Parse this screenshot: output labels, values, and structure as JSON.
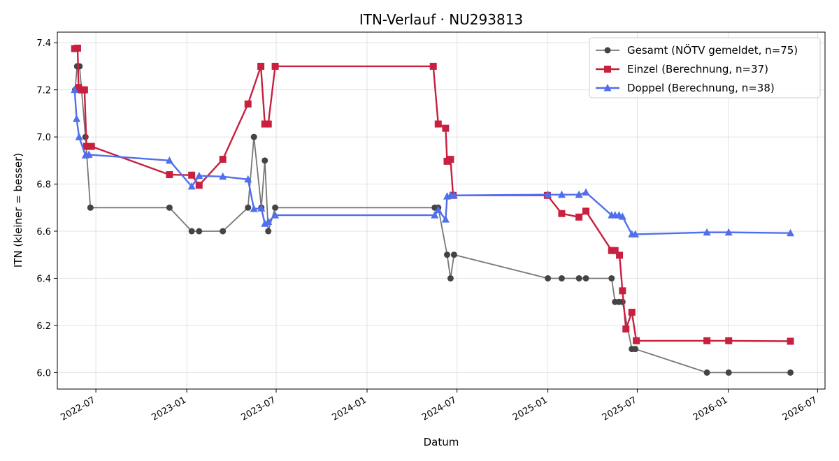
{
  "chart_data": {
    "type": "line",
    "title": "ITN-Verlauf · NU293813",
    "xlabel": "Datum",
    "ylabel": "ITN  (kleiner = besser)",
    "x_range": [
      "2022-04-14",
      "2026-07-16"
    ],
    "ylim": [
      5.93,
      7.445
    ],
    "grid": true,
    "legend_position": "top-right",
    "x_ticks": [
      {
        "date": "2022-07-01",
        "label": "2022-07"
      },
      {
        "date": "2023-01-01",
        "label": "2023-01"
      },
      {
        "date": "2023-07-01",
        "label": "2023-07"
      },
      {
        "date": "2024-01-01",
        "label": "2024-01"
      },
      {
        "date": "2024-07-01",
        "label": "2024-07"
      },
      {
        "date": "2025-01-01",
        "label": "2025-01"
      },
      {
        "date": "2025-07-01",
        "label": "2025-07"
      },
      {
        "date": "2026-01-01",
        "label": "2026-01"
      },
      {
        "date": "2026-07-01",
        "label": "2026-07"
      }
    ],
    "y_ticks": [
      {
        "value": 6.0,
        "label": "6.0"
      },
      {
        "value": 6.2,
        "label": "6.2"
      },
      {
        "value": 6.4,
        "label": "6.4"
      },
      {
        "value": 6.6,
        "label": "6.6"
      },
      {
        "value": 6.8,
        "label": "6.8"
      },
      {
        "value": 7.0,
        "label": "7.0"
      },
      {
        "value": 7.2,
        "label": "7.2"
      },
      {
        "value": 7.4,
        "label": "7.4"
      }
    ],
    "series": [
      {
        "name": "Gesamt (NÖTV gemeldet, n=75)",
        "color": "#444444",
        "marker": "circle",
        "points": [
          {
            "x": "2022-05-20",
            "y": 7.2
          },
          {
            "x": "2022-05-24",
            "y": 7.3
          },
          {
            "x": "2022-05-29",
            "y": 7.3
          },
          {
            "x": "2022-06-10",
            "y": 7.0
          },
          {
            "x": "2022-06-20",
            "y": 6.7
          },
          {
            "x": "2022-11-27",
            "y": 6.7
          },
          {
            "x": "2023-01-11",
            "y": 6.6
          },
          {
            "x": "2023-01-26",
            "y": 6.6
          },
          {
            "x": "2023-03-15",
            "y": 6.6
          },
          {
            "x": "2023-05-05",
            "y": 6.7
          },
          {
            "x": "2023-05-17",
            "y": 7.0
          },
          {
            "x": "2023-06-01",
            "y": 6.7
          },
          {
            "x": "2023-06-08",
            "y": 6.9
          },
          {
            "x": "2023-06-15",
            "y": 6.6
          },
          {
            "x": "2023-06-29",
            "y": 6.7
          },
          {
            "x": "2024-05-17",
            "y": 6.7
          },
          {
            "x": "2024-05-24",
            "y": 6.7
          },
          {
            "x": "2024-06-11",
            "y": 6.5
          },
          {
            "x": "2024-06-18",
            "y": 6.4
          },
          {
            "x": "2024-06-25",
            "y": 6.5
          },
          {
            "x": "2025-01-01",
            "y": 6.4
          },
          {
            "x": "2025-01-29",
            "y": 6.4
          },
          {
            "x": "2025-03-05",
            "y": 6.4
          },
          {
            "x": "2025-03-19",
            "y": 6.4
          },
          {
            "x": "2025-05-10",
            "y": 6.4
          },
          {
            "x": "2025-05-17",
            "y": 6.3
          },
          {
            "x": "2025-05-25",
            "y": 6.3
          },
          {
            "x": "2025-06-01",
            "y": 6.3
          },
          {
            "x": "2025-06-20",
            "y": 6.1
          },
          {
            "x": "2025-06-27",
            "y": 6.1
          },
          {
            "x": "2025-11-19",
            "y": 6.0
          },
          {
            "x": "2026-01-02",
            "y": 6.0
          },
          {
            "x": "2026-05-07",
            "y": 6.0
          }
        ]
      },
      {
        "name": "Einzel (Berechnung, n=37)",
        "color": "#c8203f",
        "marker": "square",
        "points": [
          {
            "x": "2022-05-19",
            "y": 7.375
          },
          {
            "x": "2022-05-25",
            "y": 7.377
          },
          {
            "x": "2022-05-27",
            "y": 7.21
          },
          {
            "x": "2022-06-02",
            "y": 7.2
          },
          {
            "x": "2022-06-08",
            "y": 7.2
          },
          {
            "x": "2022-06-12",
            "y": 6.96
          },
          {
            "x": "2022-06-22",
            "y": 6.96
          },
          {
            "x": "2022-11-27",
            "y": 6.84
          },
          {
            "x": "2023-01-11",
            "y": 6.838
          },
          {
            "x": "2023-01-26",
            "y": 6.795
          },
          {
            "x": "2023-03-15",
            "y": 6.905
          },
          {
            "x": "2023-05-05",
            "y": 7.14
          },
          {
            "x": "2023-05-31",
            "y": 7.3
          },
          {
            "x": "2023-06-08",
            "y": 7.055
          },
          {
            "x": "2023-06-15",
            "y": 7.055
          },
          {
            "x": "2023-06-29",
            "y": 7.3
          },
          {
            "x": "2024-05-14",
            "y": 7.3
          },
          {
            "x": "2024-05-24",
            "y": 7.055
          },
          {
            "x": "2024-06-08",
            "y": 7.037
          },
          {
            "x": "2024-06-11",
            "y": 6.897
          },
          {
            "x": "2024-06-18",
            "y": 6.905
          },
          {
            "x": "2024-06-23",
            "y": 6.752
          },
          {
            "x": "2024-12-31",
            "y": 6.752
          },
          {
            "x": "2025-01-29",
            "y": 6.675
          },
          {
            "x": "2025-03-05",
            "y": 6.66
          },
          {
            "x": "2025-03-19",
            "y": 6.685
          },
          {
            "x": "2025-05-10",
            "y": 6.518
          },
          {
            "x": "2025-05-17",
            "y": 6.518
          },
          {
            "x": "2025-05-26",
            "y": 6.498
          },
          {
            "x": "2025-06-01",
            "y": 6.347
          },
          {
            "x": "2025-06-08",
            "y": 6.185
          },
          {
            "x": "2025-06-20",
            "y": 6.256
          },
          {
            "x": "2025-06-29",
            "y": 6.135
          },
          {
            "x": "2025-11-19",
            "y": 6.135
          },
          {
            "x": "2026-01-02",
            "y": 6.135
          },
          {
            "x": "2026-05-07",
            "y": 6.133
          }
        ]
      },
      {
        "name": "Doppel (Berechnung, n=38)",
        "color": "#4f6fed",
        "marker": "triangle",
        "points": [
          {
            "x": "2022-05-19",
            "y": 7.2
          },
          {
            "x": "2022-05-23",
            "y": 7.077
          },
          {
            "x": "2022-05-28",
            "y": 7.0
          },
          {
            "x": "2022-06-10",
            "y": 6.922
          },
          {
            "x": "2022-06-17",
            "y": 6.925
          },
          {
            "x": "2022-11-27",
            "y": 6.9
          },
          {
            "x": "2023-01-11",
            "y": 6.79
          },
          {
            "x": "2023-01-26",
            "y": 6.835
          },
          {
            "x": "2023-03-15",
            "y": 6.832
          },
          {
            "x": "2023-05-05",
            "y": 6.82
          },
          {
            "x": "2023-05-17",
            "y": 6.695
          },
          {
            "x": "2023-06-01",
            "y": 6.697
          },
          {
            "x": "2023-06-08",
            "y": 6.632
          },
          {
            "x": "2023-06-15",
            "y": 6.64
          },
          {
            "x": "2023-06-29",
            "y": 6.668
          },
          {
            "x": "2024-05-17",
            "y": 6.668
          },
          {
            "x": "2024-05-24",
            "y": 6.69
          },
          {
            "x": "2024-06-08",
            "y": 6.65
          },
          {
            "x": "2024-06-11",
            "y": 6.748
          },
          {
            "x": "2024-06-18",
            "y": 6.752
          },
          {
            "x": "2024-06-25",
            "y": 6.752
          },
          {
            "x": "2025-01-01",
            "y": 6.755
          },
          {
            "x": "2025-01-29",
            "y": 6.755
          },
          {
            "x": "2025-03-05",
            "y": 6.755
          },
          {
            "x": "2025-03-19",
            "y": 6.765
          },
          {
            "x": "2025-05-10",
            "y": 6.668
          },
          {
            "x": "2025-05-17",
            "y": 6.668
          },
          {
            "x": "2025-05-25",
            "y": 6.668
          },
          {
            "x": "2025-06-01",
            "y": 6.662
          },
          {
            "x": "2025-06-20",
            "y": 6.587
          },
          {
            "x": "2025-06-27",
            "y": 6.587
          },
          {
            "x": "2025-11-19",
            "y": 6.595
          },
          {
            "x": "2026-01-02",
            "y": 6.595
          },
          {
            "x": "2026-05-07",
            "y": 6.592
          }
        ]
      }
    ]
  }
}
